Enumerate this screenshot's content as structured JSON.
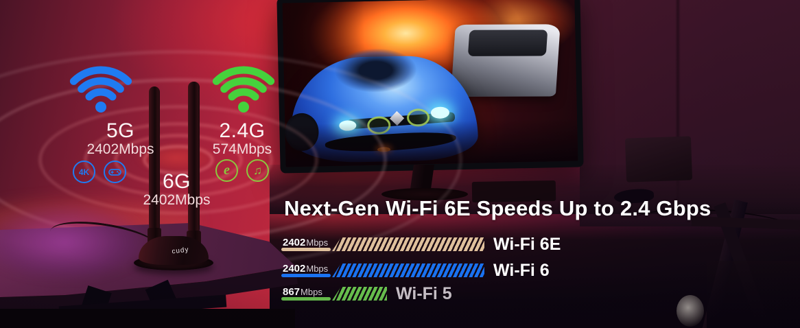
{
  "device": {
    "brand": "cudy"
  },
  "signals": [
    {
      "band": "5G",
      "speed": "2402Mbps",
      "badge_icons": [
        "uhd-4k-icon",
        "gamepad-icon"
      ]
    },
    {
      "band": "2.4G",
      "speed": "574Mbps",
      "badge_icons": [
        "browser-e-icon",
        "music-note-icon"
      ]
    },
    {
      "band": "6G",
      "speed": "2402Mbps",
      "badge_icons": []
    }
  ],
  "badge_labels": {
    "uhd": "4K",
    "browser": "e",
    "music": "♫"
  },
  "headline": "Next-Gen Wi-Fi 6E Speeds Up to 2.4 Gbps",
  "colors": {
    "wifi-blue": "#1f7bf2",
    "wifi-green": "#46d23c",
    "badge-green": "#8bc73e",
    "bar-tan": "#dfc09c",
    "bar-blue": "#1a72f0",
    "bar-green": "#69c24e"
  },
  "chart_data": {
    "type": "bar",
    "orientation": "horizontal",
    "title": "Next-Gen Wi-Fi 6E Speeds Up to 2.4 Gbps",
    "categories": [
      "Wi-Fi 6E",
      "Wi-Fi 6",
      "Wi-Fi 5"
    ],
    "values": [
      2402,
      2402,
      867
    ],
    "unit": "Mbps",
    "xmax": 2402,
    "colors": [
      "#dfc09c",
      "#1a72f0",
      "#69c24e"
    ],
    "style": "diagonal-hatch",
    "legend": false,
    "grid": false
  }
}
